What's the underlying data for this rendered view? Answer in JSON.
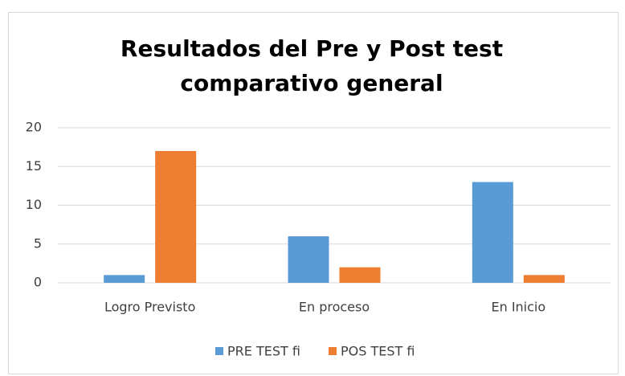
{
  "chart_data": {
    "type": "bar",
    "title": [
      "Resultados del Pre y Post test",
      "comparativo general"
    ],
    "categories": [
      "Logro Previsto",
      "En proceso",
      "En Inicio"
    ],
    "series": [
      {
        "name": "PRE TEST fi",
        "color": "#5b9bd5",
        "values": [
          1,
          6,
          13
        ]
      },
      {
        "name": "POS TEST fi",
        "color": "#ed7d31",
        "values": [
          17,
          2,
          1
        ]
      }
    ],
    "ylim": [
      0,
      20
    ],
    "yticks": [
      0,
      5,
      10,
      15,
      20
    ],
    "grid": true,
    "legend": "bottom"
  }
}
